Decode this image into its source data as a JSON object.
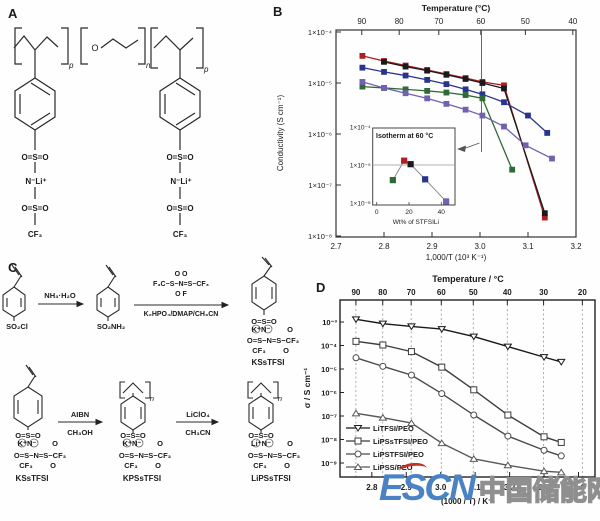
{
  "panels": {
    "a": {
      "label": "A",
      "ether": "O",
      "p_left": "p",
      "n_mid": "n",
      "p_right": "p",
      "pendant_left": [
        "O=S=O",
        "N⁻Li⁺",
        "O=S=O",
        "CF₃"
      ],
      "pendant_right": [
        "O=S=O",
        "N⁻Li⁺",
        "O=S=O",
        "CF₃"
      ]
    },
    "b": {
      "label": "B"
    },
    "c": {
      "label": "C",
      "row1": {
        "mol1_caption": "SO₂Cl",
        "arrow1_top": "NH₃·H₂O",
        "mol2_caption": "SO₂NH₂",
        "reagent_o_top": "O          O",
        "reagent_main": "F₃C−S−N=S−CF₃",
        "reagent_o_bottom": "O           F",
        "arrow2_bottom": "K₂HPO₄/DMAP/CH₃CN",
        "mol3_line1": "O=S=O",
        "mol3_line2": "K⁺N⁻",
        "mol3_line2b": "O",
        "mol3_line3": "O=S−N=S−CF₃",
        "mol3_line4": "CF₃",
        "mol3_line4b": "O",
        "mol3_name": "KSsTFSI"
      },
      "row2": {
        "mol4_line1": "O=S=O",
        "mol4_line2": "K⁺N⁻",
        "mol4_line2b": "O",
        "mol4_line3": "O=S−N=S−CF₃",
        "mol4_line4": "CF₃",
        "mol4_line4b": "O",
        "mol4_name": "KSsTFSI",
        "arrowA_top": "AIBN",
        "arrowA_bottom": "CH₃OH",
        "mol5_repeat": "n",
        "mol5_line1": "O=S=O",
        "mol5_line2": "K⁺N⁻",
        "mol5_line2b": "O",
        "mol5_line3": "O=S−N=S−CF₃",
        "mol5_line4": "CF₃",
        "mol5_line4b": "O",
        "mol5_name": "KPSsTFSI",
        "arrowB_top": "LiClO₄",
        "arrowB_bottom": "CH₃CN",
        "mol6_repeat": "n",
        "mol6_line1": "O=S=O",
        "mol6_line2": "Li⁺N⁻",
        "mol6_line2b": "O",
        "mol6_line3": "O=S−N=S−CF₃",
        "mol6_line4": "CF₃",
        "mol6_line4b": "O",
        "mol6_name": "LiPSsTFSI"
      }
    },
    "d": {
      "label": "D"
    }
  },
  "watermark": {
    "en": "ESCN",
    "cn": "中国储能网",
    "en_color": "#4b82c4",
    "cn_color": "#8f8f8f",
    "accent_color": "#c23326"
  },
  "chart_data": [
    {
      "type": "line",
      "panel": "B",
      "title_top": "Temperature (°C)",
      "top_ticks": [
        90,
        80,
        70,
        60,
        50,
        40
      ],
      "xlabel": "1,000/T (10³ K⁻¹)",
      "ylabel": "Conductivity (S cm⁻¹)",
      "xlim": [
        2.7,
        3.2
      ],
      "x_ticks": [
        "2.7",
        "2.8",
        "2.9",
        "3.0",
        "3.1",
        "3.2"
      ],
      "ylog_range": [
        -4,
        -8
      ],
      "y_tick_labels": [
        "1×10⁻⁴",
        "1×10⁻⁵",
        "1×10⁻⁶",
        "1×10⁻⁷",
        "1×10⁻⁸"
      ],
      "vline_x": 3.003,
      "grid": "off",
      "series": [
        {
          "name": "red-squares",
          "color": "#b01f24",
          "marker": "square",
          "x": [
            2.755,
            2.8,
            2.845,
            2.89,
            2.93,
            2.97,
            3.005,
            3.05,
            3.135
          ],
          "y": [
            3.4e-05,
            2.7e-05,
            2.2e-05,
            1.8e-05,
            1.5e-05,
            1.25e-05,
            1.05e-05,
            9e-06,
            2.3e-08
          ]
        },
        {
          "name": "black-squares",
          "color": "#1a1a1a",
          "marker": "square",
          "x": [
            2.8,
            2.845,
            2.89,
            2.93,
            2.97,
            3.005,
            3.05,
            3.135
          ],
          "y": [
            2.6e-05,
            2.1e-05,
            1.75e-05,
            1.45e-05,
            1.2e-05,
            1e-05,
            7.8e-06,
            2.8e-08
          ]
        },
        {
          "name": "navy-squares",
          "color": "#28358f",
          "marker": "square",
          "x": [
            2.755,
            2.8,
            2.845,
            2.89,
            2.93,
            2.97,
            3.005,
            3.05,
            3.1,
            3.14
          ],
          "y": [
            2e-05,
            1.65e-05,
            1.4e-05,
            1.15e-05,
            9.5e-06,
            7.5e-06,
            6e-06,
            4.2e-06,
            2.3e-06,
            1.05e-06
          ]
        },
        {
          "name": "green-squares",
          "color": "#2f6b35",
          "marker": "square",
          "x": [
            2.755,
            2.8,
            2.845,
            2.89,
            2.93,
            2.97,
            3.005,
            3.067
          ],
          "y": [
            8.5e-06,
            8e-06,
            7.5e-06,
            7e-06,
            6.5e-06,
            5.8e-06,
            5e-06,
            2e-07
          ]
        },
        {
          "name": "purple-squares",
          "color": "#7161b0",
          "marker": "square",
          "x": [
            2.755,
            2.8,
            2.845,
            2.89,
            2.93,
            2.97,
            3.005,
            3.05,
            3.095,
            3.15
          ],
          "y": [
            1.05e-05,
            8e-06,
            6.3e-06,
            5e-06,
            3.9e-06,
            3e-06,
            2.3e-06,
            1.4e-06,
            6e-07,
            3.3e-07
          ]
        }
      ],
      "inset": {
        "title": "Isotherm at 60 °C",
        "xlabel": "Wt% of STFSILi",
        "x_ticks": [
          "0",
          "20",
          "40"
        ],
        "y_tick_labels": [
          "1×10⁻⁴",
          "1×10⁻⁵",
          "1×10⁻⁶"
        ],
        "ylog_range": [
          -4,
          -6
        ],
        "hline_log": -5,
        "points": [
          {
            "x": 10,
            "y": 4e-06,
            "color": "#2f6b35"
          },
          {
            "x": 17,
            "y": 1.3e-05,
            "color": "#b01f24"
          },
          {
            "x": 21,
            "y": 1.05e-05,
            "color": "#1a1a1a"
          },
          {
            "x": 30,
            "y": 4.2e-06,
            "color": "#28358f"
          },
          {
            "x": 43,
            "y": 1.1e-06,
            "color": "#7161b0"
          }
        ]
      }
    },
    {
      "type": "line",
      "panel": "D",
      "title_top": "Temperature / °C",
      "top_ticks": [
        90,
        80,
        70,
        60,
        50,
        40,
        30,
        20
      ],
      "xlabel": "(1000 / T) / K⁻¹",
      "ylabel": "σ / S cm⁻¹",
      "xlim": [
        2.7,
        3.47
      ],
      "x_ticks": [
        "2.8",
        "2.9",
        "3.0",
        "3.1",
        "3.2",
        "3.3",
        "3.4"
      ],
      "ylog_range": [
        -3,
        -9
      ],
      "y_tick_labels": [
        "10⁻³",
        "10⁻⁴",
        "10⁻⁵",
        "10⁻⁶",
        "10⁻⁷",
        "10⁻⁸",
        "10⁻⁹"
      ],
      "grid": "vertical-dashed",
      "legend_position": "bottom-left",
      "series": [
        {
          "name": "LiTFSI/PEO",
          "color": "#1a1a1a",
          "marker": "triangle-down",
          "x": [
            2.754,
            2.832,
            2.915,
            3.003,
            3.096,
            3.195,
            3.3,
            3.35
          ],
          "y": [
            0.0013,
            0.00085,
            0.00065,
            0.0005,
            0.00024,
            9e-05,
            3.2e-05,
            2e-05
          ]
        },
        {
          "name": "LiPSsTFSI/PEO",
          "color": "#3c3c3c",
          "marker": "square",
          "x": [
            2.754,
            2.832,
            2.915,
            3.003,
            3.096,
            3.195,
            3.3,
            3.35
          ],
          "y": [
            0.00015,
            0.000105,
            5.5e-05,
            1.2e-05,
            1.3e-06,
            1.1e-07,
            1.3e-08,
            7.5e-09
          ]
        },
        {
          "name": "LiPSTFSI/PEO",
          "color": "#4a4a4a",
          "marker": "circle",
          "x": [
            2.754,
            2.832,
            2.915,
            3.003,
            3.096,
            3.195,
            3.3,
            3.35
          ],
          "y": [
            3e-05,
            1.3e-05,
            5.5e-06,
            9e-07,
            1.1e-07,
            1.4e-08,
            3.5e-09,
            2e-09
          ]
        },
        {
          "name": "LiPSS/PEO",
          "color": "#585858",
          "marker": "triangle-up",
          "x": [
            2.754,
            2.832,
            2.915,
            3.003,
            3.096,
            3.195,
            3.3,
            3.35
          ],
          "y": [
            1.3e-07,
            8.5e-08,
            5e-08,
            7e-09,
            1.5e-09,
            8e-10,
            4.5e-10,
            4e-10
          ]
        }
      ]
    }
  ]
}
